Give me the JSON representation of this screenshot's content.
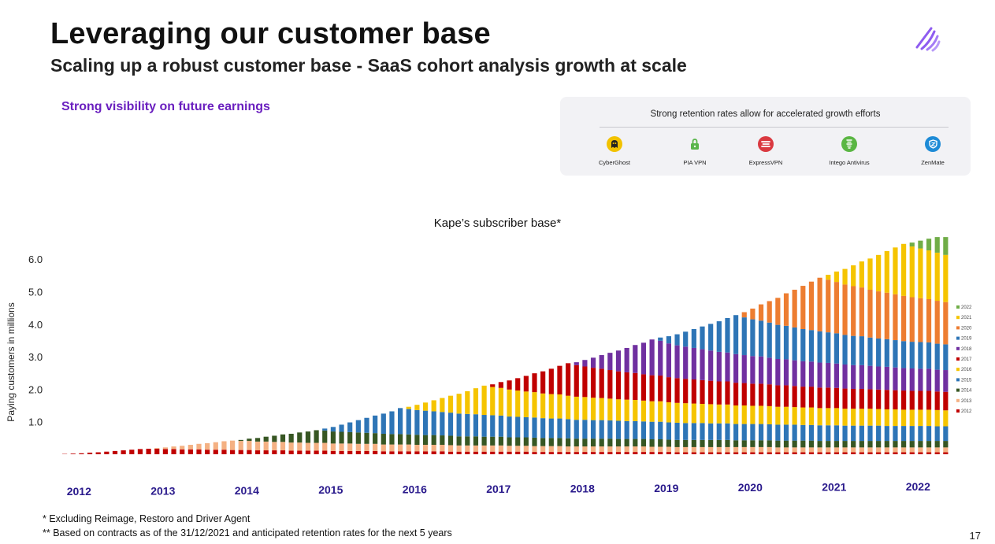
{
  "slide": {
    "title": "Leveraging our customer base",
    "subtitle": "Scaling up a robust customer base - SaaS cohort analysis growth at scale",
    "highlight": "Strong visibility on future earnings",
    "page_number": "17",
    "accent_color": "#6a1fbf"
  },
  "retention_panel": {
    "title": "Strong retention rates allow for accelerated growth efforts",
    "brands": [
      {
        "name": "CyberGhost",
        "icon": "ghost-icon",
        "color": "#f2c200"
      },
      {
        "name": "PIA VPN",
        "icon": "lock-icon",
        "color": "#59b54b"
      },
      {
        "name": "ExpressVPN",
        "icon": "express-icon",
        "color": "#da3940"
      },
      {
        "name": "Intego Antivirus",
        "icon": "shield-icon",
        "color": "#5ab643"
      },
      {
        "name": "ZenMate",
        "icon": "zen-shield-icon",
        "color": "#1e8bd6"
      }
    ]
  },
  "footnotes": [
    "* Excluding Reimage, Restoro and Driver Agent",
    "** Based on contracts as of the 31/12/2021 and anticipated retention rates for the next 5 years"
  ],
  "chart_data": {
    "type": "bar",
    "stacked": true,
    "title": "Kape’s subscriber base*",
    "ylabel": "Paying customers in millions",
    "xlabel": "",
    "ylim": [
      0,
      6.5
    ],
    "y_ticks": [
      "1.0",
      "2.0",
      "3.0",
      "4.0",
      "5.0",
      "6.0"
    ],
    "x_labels": [
      "2012",
      "2013",
      "2014",
      "2015",
      "2016",
      "2017",
      "2018",
      "2019",
      "2020",
      "2021",
      "2022"
    ],
    "bars_per_year": 10,
    "legend_position": "right",
    "grid": false,
    "series": [
      {
        "name": "2012",
        "color": "#c00000",
        "values": [
          0.01,
          0.02,
          0.03,
          0.05,
          0.06,
          0.08,
          0.1,
          0.12,
          0.14,
          0.16,
          0.17,
          0.17,
          0.16,
          0.16,
          0.15,
          0.15,
          0.15,
          0.14,
          0.14,
          0.14,
          0.13,
          0.13,
          0.13,
          0.12,
          0.12,
          0.12,
          0.12,
          0.11,
          0.11,
          0.11,
          0.11,
          0.11,
          0.1,
          0.1,
          0.1,
          0.1,
          0.1,
          0.1,
          0.09,
          0.09,
          0.09,
          0.09,
          0.09,
          0.09,
          0.09,
          0.09,
          0.08,
          0.08,
          0.08,
          0.08,
          0.08,
          0.08,
          0.08,
          0.08,
          0.08,
          0.08,
          0.07,
          0.07,
          0.07,
          0.07,
          0.07,
          0.07,
          0.07,
          0.07,
          0.07,
          0.07,
          0.07,
          0.07,
          0.07,
          0.07,
          0.07,
          0.07,
          0.07,
          0.06,
          0.06,
          0.06,
          0.06,
          0.06,
          0.06,
          0.06,
          0.06,
          0.06,
          0.06,
          0.06,
          0.06,
          0.06,
          0.06,
          0.06,
          0.06,
          0.06,
          0.06,
          0.06,
          0.06,
          0.06,
          0.06,
          0.06,
          0.06,
          0.06,
          0.06,
          0.06,
          0.06,
          0.06,
          0.06,
          0.06,
          0.06,
          0.06
        ]
      },
      {
        "name": "2013",
        "color": "#f4b183",
        "values": [
          0,
          0,
          0,
          0,
          0,
          0,
          0,
          0,
          0,
          0,
          0,
          0.02,
          0.05,
          0.08,
          0.11,
          0.14,
          0.17,
          0.2,
          0.23,
          0.26,
          0.29,
          0.28,
          0.28,
          0.27,
          0.27,
          0.26,
          0.26,
          0.25,
          0.25,
          0.24,
          0.24,
          0.24,
          0.23,
          0.23,
          0.23,
          0.22,
          0.22,
          0.22,
          0.21,
          0.21,
          0.21,
          0.21,
          0.2,
          0.2,
          0.2,
          0.2,
          0.2,
          0.19,
          0.19,
          0.19,
          0.19,
          0.19,
          0.19,
          0.18,
          0.18,
          0.18,
          0.18,
          0.18,
          0.18,
          0.18,
          0.17,
          0.17,
          0.17,
          0.17,
          0.17,
          0.17,
          0.17,
          0.17,
          0.17,
          0.17,
          0.16,
          0.16,
          0.16,
          0.16,
          0.16,
          0.16,
          0.16,
          0.16,
          0.16,
          0.16,
          0.16,
          0.16,
          0.16,
          0.16,
          0.16,
          0.15,
          0.15,
          0.15,
          0.15,
          0.15,
          0.15,
          0.15,
          0.15,
          0.15,
          0.15,
          0.15,
          0.15,
          0.15,
          0.15,
          0.15,
          0.15,
          0.15,
          0.15,
          0.15,
          0.15,
          0.15
        ]
      },
      {
        "name": "2014",
        "color": "#375623",
        "values": [
          0,
          0,
          0,
          0,
          0,
          0,
          0,
          0,
          0,
          0,
          0,
          0,
          0,
          0,
          0,
          0,
          0,
          0,
          0,
          0,
          0,
          0.03,
          0.07,
          0.11,
          0.15,
          0.19,
          0.23,
          0.27,
          0.31,
          0.35,
          0.39,
          0.38,
          0.37,
          0.36,
          0.35,
          0.35,
          0.34,
          0.33,
          0.33,
          0.32,
          0.32,
          0.31,
          0.31,
          0.3,
          0.3,
          0.29,
          0.29,
          0.28,
          0.28,
          0.28,
          0.27,
          0.27,
          0.27,
          0.26,
          0.26,
          0.26,
          0.26,
          0.25,
          0.25,
          0.25,
          0.25,
          0.24,
          0.24,
          0.24,
          0.24,
          0.24,
          0.23,
          0.23,
          0.23,
          0.23,
          0.23,
          0.23,
          0.22,
          0.22,
          0.22,
          0.22,
          0.22,
          0.22,
          0.22,
          0.22,
          0.21,
          0.21,
          0.21,
          0.21,
          0.21,
          0.21,
          0.21,
          0.21,
          0.21,
          0.21,
          0.2,
          0.2,
          0.2,
          0.2,
          0.2,
          0.2,
          0.2,
          0.2,
          0.2,
          0.2,
          0.2,
          0.2,
          0.2,
          0.2,
          0.2,
          0.2
        ]
      },
      {
        "name": "2015",
        "color": "#2e75b6",
        "values": [
          0,
          0,
          0,
          0,
          0,
          0,
          0,
          0,
          0,
          0,
          0,
          0,
          0,
          0,
          0,
          0,
          0,
          0,
          0,
          0,
          0,
          0,
          0,
          0,
          0,
          0,
          0,
          0,
          0,
          0,
          0,
          0.06,
          0.14,
          0.22,
          0.3,
          0.38,
          0.46,
          0.54,
          0.62,
          0.7,
          0.8,
          0.78,
          0.76,
          0.75,
          0.73,
          0.72,
          0.71,
          0.7,
          0.69,
          0.68,
          0.67,
          0.66,
          0.65,
          0.64,
          0.63,
          0.62,
          0.62,
          0.61,
          0.6,
          0.6,
          0.59,
          0.58,
          0.58,
          0.57,
          0.57,
          0.56,
          0.56,
          0.55,
          0.55,
          0.54,
          0.54,
          0.54,
          0.53,
          0.53,
          0.52,
          0.52,
          0.52,
          0.51,
          0.51,
          0.51,
          0.5,
          0.5,
          0.5,
          0.5,
          0.49,
          0.49,
          0.49,
          0.49,
          0.48,
          0.48,
          0.48,
          0.48,
          0.48,
          0.47,
          0.47,
          0.47,
          0.47,
          0.47,
          0.46,
          0.46,
          0.46,
          0.46,
          0.46,
          0.46,
          0.45,
          0.45
        ]
      },
      {
        "name": "2016",
        "color": "#f5c400",
        "values": [
          0,
          0,
          0,
          0,
          0,
          0,
          0,
          0,
          0,
          0,
          0,
          0,
          0,
          0,
          0,
          0,
          0,
          0,
          0,
          0,
          0,
          0,
          0,
          0,
          0,
          0,
          0,
          0,
          0,
          0,
          0,
          0,
          0,
          0,
          0,
          0,
          0,
          0,
          0,
          0,
          0,
          0.07,
          0.16,
          0.25,
          0.34,
          0.43,
          0.52,
          0.61,
          0.7,
          0.8,
          0.9,
          0.87,
          0.85,
          0.83,
          0.81,
          0.79,
          0.78,
          0.76,
          0.75,
          0.74,
          0.72,
          0.71,
          0.7,
          0.69,
          0.68,
          0.67,
          0.66,
          0.66,
          0.65,
          0.64,
          0.63,
          0.63,
          0.62,
          0.61,
          0.61,
          0.6,
          0.59,
          0.59,
          0.58,
          0.58,
          0.57,
          0.57,
          0.56,
          0.56,
          0.56,
          0.55,
          0.55,
          0.54,
          0.54,
          0.54,
          0.53,
          0.53,
          0.53,
          0.52,
          0.52,
          0.52,
          0.52,
          0.51,
          0.51,
          0.51,
          0.5,
          0.5,
          0.5,
          0.5,
          0.5,
          0.49
        ]
      },
      {
        "name": "2017",
        "color": "#c00000",
        "values": [
          0,
          0,
          0,
          0,
          0,
          0,
          0,
          0,
          0,
          0,
          0,
          0,
          0,
          0,
          0,
          0,
          0,
          0,
          0,
          0,
          0,
          0,
          0,
          0,
          0,
          0,
          0,
          0,
          0,
          0,
          0,
          0,
          0,
          0,
          0,
          0,
          0,
          0,
          0,
          0,
          0,
          0,
          0,
          0,
          0,
          0,
          0,
          0,
          0,
          0,
          0,
          0.08,
          0.18,
          0.28,
          0.38,
          0.48,
          0.58,
          0.68,
          0.78,
          0.88,
          1,
          0.97,
          0.94,
          0.92,
          0.9,
          0.88,
          0.86,
          0.84,
          0.83,
          0.81,
          0.8,
          0.79,
          0.77,
          0.76,
          0.75,
          0.74,
          0.73,
          0.72,
          0.71,
          0.71,
          0.7,
          0.69,
          0.68,
          0.68,
          0.67,
          0.66,
          0.66,
          0.65,
          0.64,
          0.64,
          0.63,
          0.63,
          0.62,
          0.62,
          0.61,
          0.61,
          0.6,
          0.6,
          0.6,
          0.59,
          0.59,
          0.58,
          0.58,
          0.58,
          0.57,
          0.57
        ]
      },
      {
        "name": "2018",
        "color": "#7030a0",
        "values": [
          0,
          0,
          0,
          0,
          0,
          0,
          0,
          0,
          0,
          0,
          0,
          0,
          0,
          0,
          0,
          0,
          0,
          0,
          0,
          0,
          0,
          0,
          0,
          0,
          0,
          0,
          0,
          0,
          0,
          0,
          0,
          0,
          0,
          0,
          0,
          0,
          0,
          0,
          0,
          0,
          0,
          0,
          0,
          0,
          0,
          0,
          0,
          0,
          0,
          0,
          0,
          0,
          0,
          0,
          0,
          0,
          0,
          0,
          0,
          0,
          0,
          0.09,
          0.2,
          0.31,
          0.42,
          0.53,
          0.64,
          0.75,
          0.86,
          0.97,
          1.1,
          1.07,
          1.04,
          1.01,
          0.99,
          0.97,
          0.95,
          0.93,
          0.91,
          0.89,
          0.88,
          0.86,
          0.85,
          0.84,
          0.82,
          0.81,
          0.8,
          0.79,
          0.78,
          0.77,
          0.77,
          0.76,
          0.75,
          0.74,
          0.73,
          0.73,
          0.72,
          0.71,
          0.71,
          0.7,
          0.69,
          0.69,
          0.68,
          0.68,
          0.67,
          0.67
        ]
      },
      {
        "name": "2019",
        "color": "#2e75b6",
        "values": [
          0,
          0,
          0,
          0,
          0,
          0,
          0,
          0,
          0,
          0,
          0,
          0,
          0,
          0,
          0,
          0,
          0,
          0,
          0,
          0,
          0,
          0,
          0,
          0,
          0,
          0,
          0,
          0,
          0,
          0,
          0,
          0,
          0,
          0,
          0,
          0,
          0,
          0,
          0,
          0,
          0,
          0,
          0,
          0,
          0,
          0,
          0,
          0,
          0,
          0,
          0,
          0,
          0,
          0,
          0,
          0,
          0,
          0,
          0,
          0,
          0,
          0,
          0,
          0,
          0,
          0,
          0,
          0,
          0,
          0,
          0,
          0.1,
          0.22,
          0.34,
          0.46,
          0.58,
          0.7,
          0.82,
          0.94,
          1.06,
          1.2,
          1.16,
          1.13,
          1.1,
          1.08,
          1.05,
          1.03,
          1.01,
          0.99,
          0.97,
          0.96,
          0.94,
          0.93,
          0.91,
          0.9,
          0.89,
          0.87,
          0.86,
          0.85,
          0.84,
          0.83,
          0.82,
          0.82,
          0.81,
          0.8,
          0.79
        ]
      },
      {
        "name": "2020",
        "color": "#ed7d31",
        "values": [
          0,
          0,
          0,
          0,
          0,
          0,
          0,
          0,
          0,
          0,
          0,
          0,
          0,
          0,
          0,
          0,
          0,
          0,
          0,
          0,
          0,
          0,
          0,
          0,
          0,
          0,
          0,
          0,
          0,
          0,
          0,
          0,
          0,
          0,
          0,
          0,
          0,
          0,
          0,
          0,
          0,
          0,
          0,
          0,
          0,
          0,
          0,
          0,
          0,
          0,
          0,
          0,
          0,
          0,
          0,
          0,
          0,
          0,
          0,
          0,
          0,
          0,
          0,
          0,
          0,
          0,
          0,
          0,
          0,
          0,
          0,
          0,
          0,
          0,
          0,
          0,
          0,
          0,
          0,
          0,
          0,
          0.16,
          0.33,
          0.5,
          0.66,
          0.83,
          1,
          1.16,
          1.33,
          1.49,
          1.65,
          1.62,
          1.58,
          1.55,
          1.53,
          1.5,
          1.47,
          1.45,
          1.43,
          1.41,
          1.39,
          1.37,
          1.35,
          1.33,
          1.32,
          1.3
        ]
      },
      {
        "name": "2021",
        "color": "#f5c400",
        "values": [
          0,
          0,
          0,
          0,
          0,
          0,
          0,
          0,
          0,
          0,
          0,
          0,
          0,
          0,
          0,
          0,
          0,
          0,
          0,
          0,
          0,
          0,
          0,
          0,
          0,
          0,
          0,
          0,
          0,
          0,
          0,
          0,
          0,
          0,
          0,
          0,
          0,
          0,
          0,
          0,
          0,
          0,
          0,
          0,
          0,
          0,
          0,
          0,
          0,
          0,
          0,
          0,
          0,
          0,
          0,
          0,
          0,
          0,
          0,
          0,
          0,
          0,
          0,
          0,
          0,
          0,
          0,
          0,
          0,
          0,
          0,
          0,
          0,
          0,
          0,
          0,
          0,
          0,
          0,
          0,
          0,
          0,
          0,
          0,
          0,
          0,
          0,
          0,
          0,
          0,
          0,
          0.15,
          0.32,
          0.48,
          0.64,
          0.8,
          0.96,
          1.12,
          1.28,
          1.44,
          1.6,
          1.56,
          1.53,
          1.5,
          1.48,
          1.45
        ]
      },
      {
        "name": "2022",
        "color": "#70ad47",
        "values": [
          0,
          0,
          0,
          0,
          0,
          0,
          0,
          0,
          0,
          0,
          0,
          0,
          0,
          0,
          0,
          0,
          0,
          0,
          0,
          0,
          0,
          0,
          0,
          0,
          0,
          0,
          0,
          0,
          0,
          0,
          0,
          0,
          0,
          0,
          0,
          0,
          0,
          0,
          0,
          0,
          0,
          0,
          0,
          0,
          0,
          0,
          0,
          0,
          0,
          0,
          0,
          0,
          0,
          0,
          0,
          0,
          0,
          0,
          0,
          0,
          0,
          0,
          0,
          0,
          0,
          0,
          0,
          0,
          0,
          0,
          0,
          0,
          0,
          0,
          0,
          0,
          0,
          0,
          0,
          0,
          0,
          0,
          0,
          0,
          0,
          0,
          0,
          0,
          0,
          0,
          0,
          0,
          0,
          0,
          0,
          0,
          0,
          0,
          0,
          0,
          0,
          0.12,
          0.24,
          0.36,
          0.48,
          0.55
        ]
      }
    ]
  }
}
